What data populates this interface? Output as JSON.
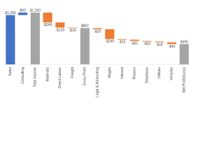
{
  "chart_data": {
    "type": "waterfall",
    "categories": [
      "Sales",
      "Consulting",
      "Total Income",
      "Materials",
      "Direct Labour",
      "Freight",
      "Gross Profit",
      "Legal & Accounting",
      "Wages",
      "Interest",
      "Repairs",
      "Telephone",
      "Utilities",
      "Vehicles",
      "Net Profit/(Loss)"
    ],
    "values": [
      1200,
      60,
      1260,
      -240,
      -125,
      -14,
      882,
      -25,
      -240,
      -15,
      -31,
      -16,
      -18,
      -42,
      495
    ],
    "value_labels": [
      "$1,200",
      "$60",
      "$1,260",
      "-$240",
      "-$125",
      "-$14",
      "$882",
      "-$25",
      "-$240",
      "-$15",
      "-$31",
      "-$16",
      "-$18",
      "-$42",
      "$495"
    ],
    "colors": [
      "#4472c4",
      "#4472c4",
      "#a5a5a5",
      "#ed7d31",
      "#ed7d31",
      "#ed7d31",
      "#a5a5a5",
      "#ed7d31",
      "#ed7d31",
      "#ed7d31",
      "#ed7d31",
      "#ed7d31",
      "#ed7d31",
      "#ed7d31",
      "#a5a5a5"
    ],
    "total_color": "#a5a5a5"
  }
}
